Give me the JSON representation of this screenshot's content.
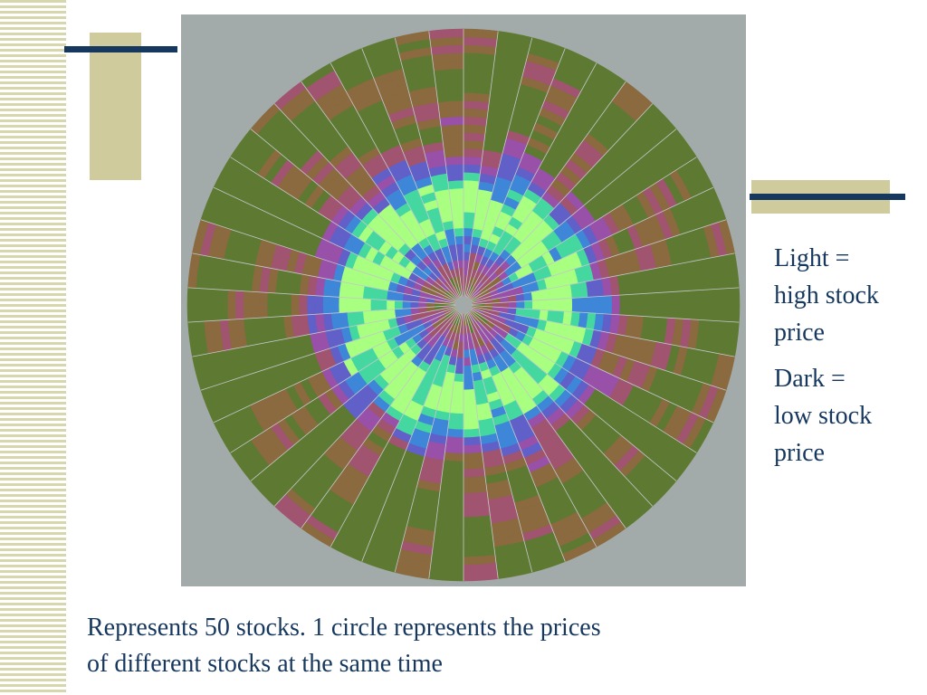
{
  "slide": {
    "legend": {
      "light_line1": "Light =",
      "light_line2": "high stock",
      "light_line3": "price",
      "dark_line1": "Dark =",
      "dark_line2": "low stock",
      "dark_line3": "price"
    },
    "caption": {
      "line1": "Represents 50 stocks.   1 circle represents the prices",
      "line2": "of different stocks at the same time"
    }
  },
  "colors": {
    "text": "#16375e",
    "navy_bar": "#16375e",
    "khaki": "#cfcb9c",
    "stripe": "#d8d6ac",
    "plot_background": "#a2abaa",
    "palette": [
      "#5e7a32",
      "#8a6a3e",
      "#a05470",
      "#9850a8",
      "#6060c8",
      "#3e86d8",
      "#44d8a0",
      "#a8ff80"
    ]
  },
  "chart_data": {
    "type": "heatmap",
    "layout": "radial",
    "title": "",
    "sectors": 50,
    "ring_index": "time",
    "sector_index": "stock",
    "color_meaning": "light = high stock price, dark = low stock price",
    "value_range": [
      0,
      1
    ],
    "rings": 34
  }
}
